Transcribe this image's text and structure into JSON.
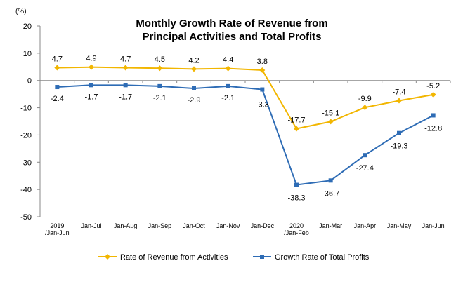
{
  "chart_data": {
    "type": "line",
    "title_lines": [
      "Monthly Growth Rate of Revenue from",
      "Principal Activities  and Total Profits"
    ],
    "y_unit": "(%)",
    "ylim": [
      -50,
      20
    ],
    "yticks": [
      20,
      10,
      0,
      -10,
      -20,
      -30,
      -40,
      -50
    ],
    "categories": [
      [
        "2019",
        "/Jan-Jun"
      ],
      [
        "Jan-Jul"
      ],
      [
        "Jan-Aug"
      ],
      [
        "Jan-Sep"
      ],
      [
        "Jan-Oct"
      ],
      [
        "Jan-Nov"
      ],
      [
        "Jan-Dec"
      ],
      [
        "2020",
        "/Jan-Feb"
      ],
      [
        "Jan-Mar"
      ],
      [
        "Jan-Apr"
      ],
      [
        "Jan-May"
      ],
      [
        "Jan-Jun"
      ]
    ],
    "series": [
      {
        "name": "Rate of Revenue from Activities",
        "color": "#f2b600",
        "marker": "diamond",
        "values": [
          4.7,
          4.9,
          4.7,
          4.5,
          4.2,
          4.4,
          3.8,
          -17.7,
          -15.1,
          -9.9,
          -7.4,
          -5.2
        ],
        "labels": [
          "4.7",
          "4.9",
          "4.7",
          "4.5",
          "4.2",
          "4.4",
          "3.8",
          "-17.7",
          "-15.1",
          "-9.9",
          "-7.4",
          "-5.2"
        ]
      },
      {
        "name": "Growth Rate of Total Profits",
        "color": "#2e6cb5",
        "marker": "square",
        "values": [
          -2.4,
          -1.7,
          -1.7,
          -2.1,
          -2.9,
          -2.1,
          -3.3,
          -38.3,
          -36.7,
          -27.4,
          -19.3,
          -12.8
        ],
        "labels": [
          "-2.4",
          "-1.7",
          "-1.7",
          "-2.1",
          "-2.9",
          "-2.1",
          "-3.3",
          "-38.3",
          "-36.7",
          "-27.4",
          "-19.3",
          "-12.8"
        ]
      }
    ],
    "legend_position": "bottom",
    "grid": false
  }
}
